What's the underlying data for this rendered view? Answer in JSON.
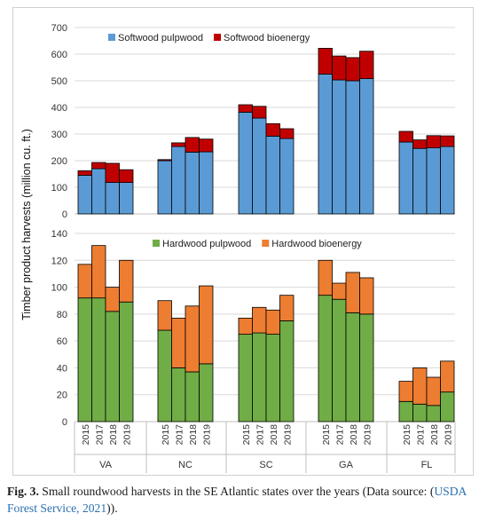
{
  "caption": {
    "label": "Fig. 3.",
    "text_before": "Small roundwood harvests in the SE Atlantic states over the years (Data source: (",
    "citation": "USDA Forest Service, 2021",
    "text_after": "))."
  },
  "chart_data": [
    {
      "type": "bar",
      "stacked": true,
      "ylabel": "Timber product harvests (million cu. ft.)",
      "ylim": [
        0,
        700
      ],
      "yticks": [
        0,
        100,
        200,
        300,
        400,
        500,
        600,
        700
      ],
      "legend_position": "top-left",
      "groups": [
        "VA",
        "NC",
        "SC",
        "GA",
        "FL"
      ],
      "years": [
        "2015",
        "2017",
        "2018",
        "2019"
      ],
      "series": [
        {
          "name": "Softwood pulpwood",
          "color": "#5b9bd5",
          "values": {
            "VA": [
              145,
              170,
              118,
              118
            ],
            "NC": [
              200,
              253,
              232,
              233
            ],
            "SC": [
              382,
              360,
              292,
              283
            ],
            "GA": [
              525,
              503,
              500,
              508
            ],
            "FL": [
              270,
              246,
              248,
              253
            ]
          }
        },
        {
          "name": "Softwood bioenergy",
          "color": "#c00000",
          "values": {
            "VA": [
              17,
              23,
              72,
              48
            ],
            "NC": [
              4,
              14,
              55,
              48
            ],
            "SC": [
              28,
              44,
              47,
              37
            ],
            "GA": [
              97,
              90,
              87,
              103
            ],
            "FL": [
              40,
              32,
              46,
              40
            ]
          }
        }
      ]
    },
    {
      "type": "bar",
      "stacked": true,
      "ylim": [
        0,
        140
      ],
      "yticks": [
        0,
        20,
        40,
        60,
        80,
        100,
        120,
        140
      ],
      "legend_position": "top-left",
      "groups": [
        "VA",
        "NC",
        "SC",
        "GA",
        "FL"
      ],
      "years": [
        "2015",
        "2017",
        "2018",
        "2019"
      ],
      "series": [
        {
          "name": "Hardwood pulpwood",
          "color": "#70ad47",
          "values": {
            "VA": [
              92,
              92,
              82,
              89
            ],
            "NC": [
              68,
              40,
              37,
              43
            ],
            "SC": [
              65,
              66,
              65,
              75
            ],
            "GA": [
              94,
              91,
              81,
              80
            ],
            "FL": [
              15,
              13,
              12,
              22
            ]
          }
        },
        {
          "name": "Hardwood bioenergy",
          "color": "#ed7d31",
          "values": {
            "VA": [
              25,
              39,
              18,
              31
            ],
            "NC": [
              22,
              37,
              49,
              58
            ],
            "SC": [
              12,
              19,
              18,
              19
            ],
            "GA": [
              26,
              12,
              30,
              27
            ],
            "FL": [
              15,
              27,
              21,
              23
            ]
          }
        }
      ]
    }
  ]
}
